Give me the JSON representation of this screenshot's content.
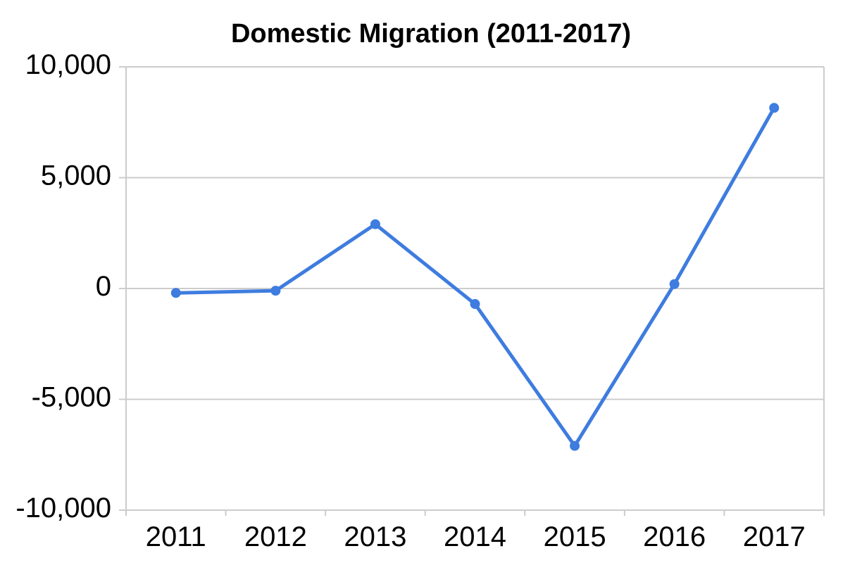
{
  "chart_data": {
    "type": "line",
    "title": "Domestic Migration (2011-2017)",
    "categories": [
      "2011",
      "2012",
      "2013",
      "2014",
      "2015",
      "2016",
      "2017"
    ],
    "values": [
      -200,
      -100,
      2900,
      -700,
      -7100,
      200,
      8150
    ],
    "ylim": [
      -10000,
      10000
    ],
    "ytick_interval": 5000,
    "ytick_labels": [
      "10,000",
      "5,000",
      "0",
      "-5,000",
      "-10,000"
    ],
    "xlabel": "",
    "ylabel": "",
    "grid": true,
    "legend": "none",
    "line_color": "#3e7cdf",
    "marker_color": "#3e7cdf",
    "axis_color": "#cccccc",
    "label_color": "#000000",
    "background": "#ffffff"
  }
}
